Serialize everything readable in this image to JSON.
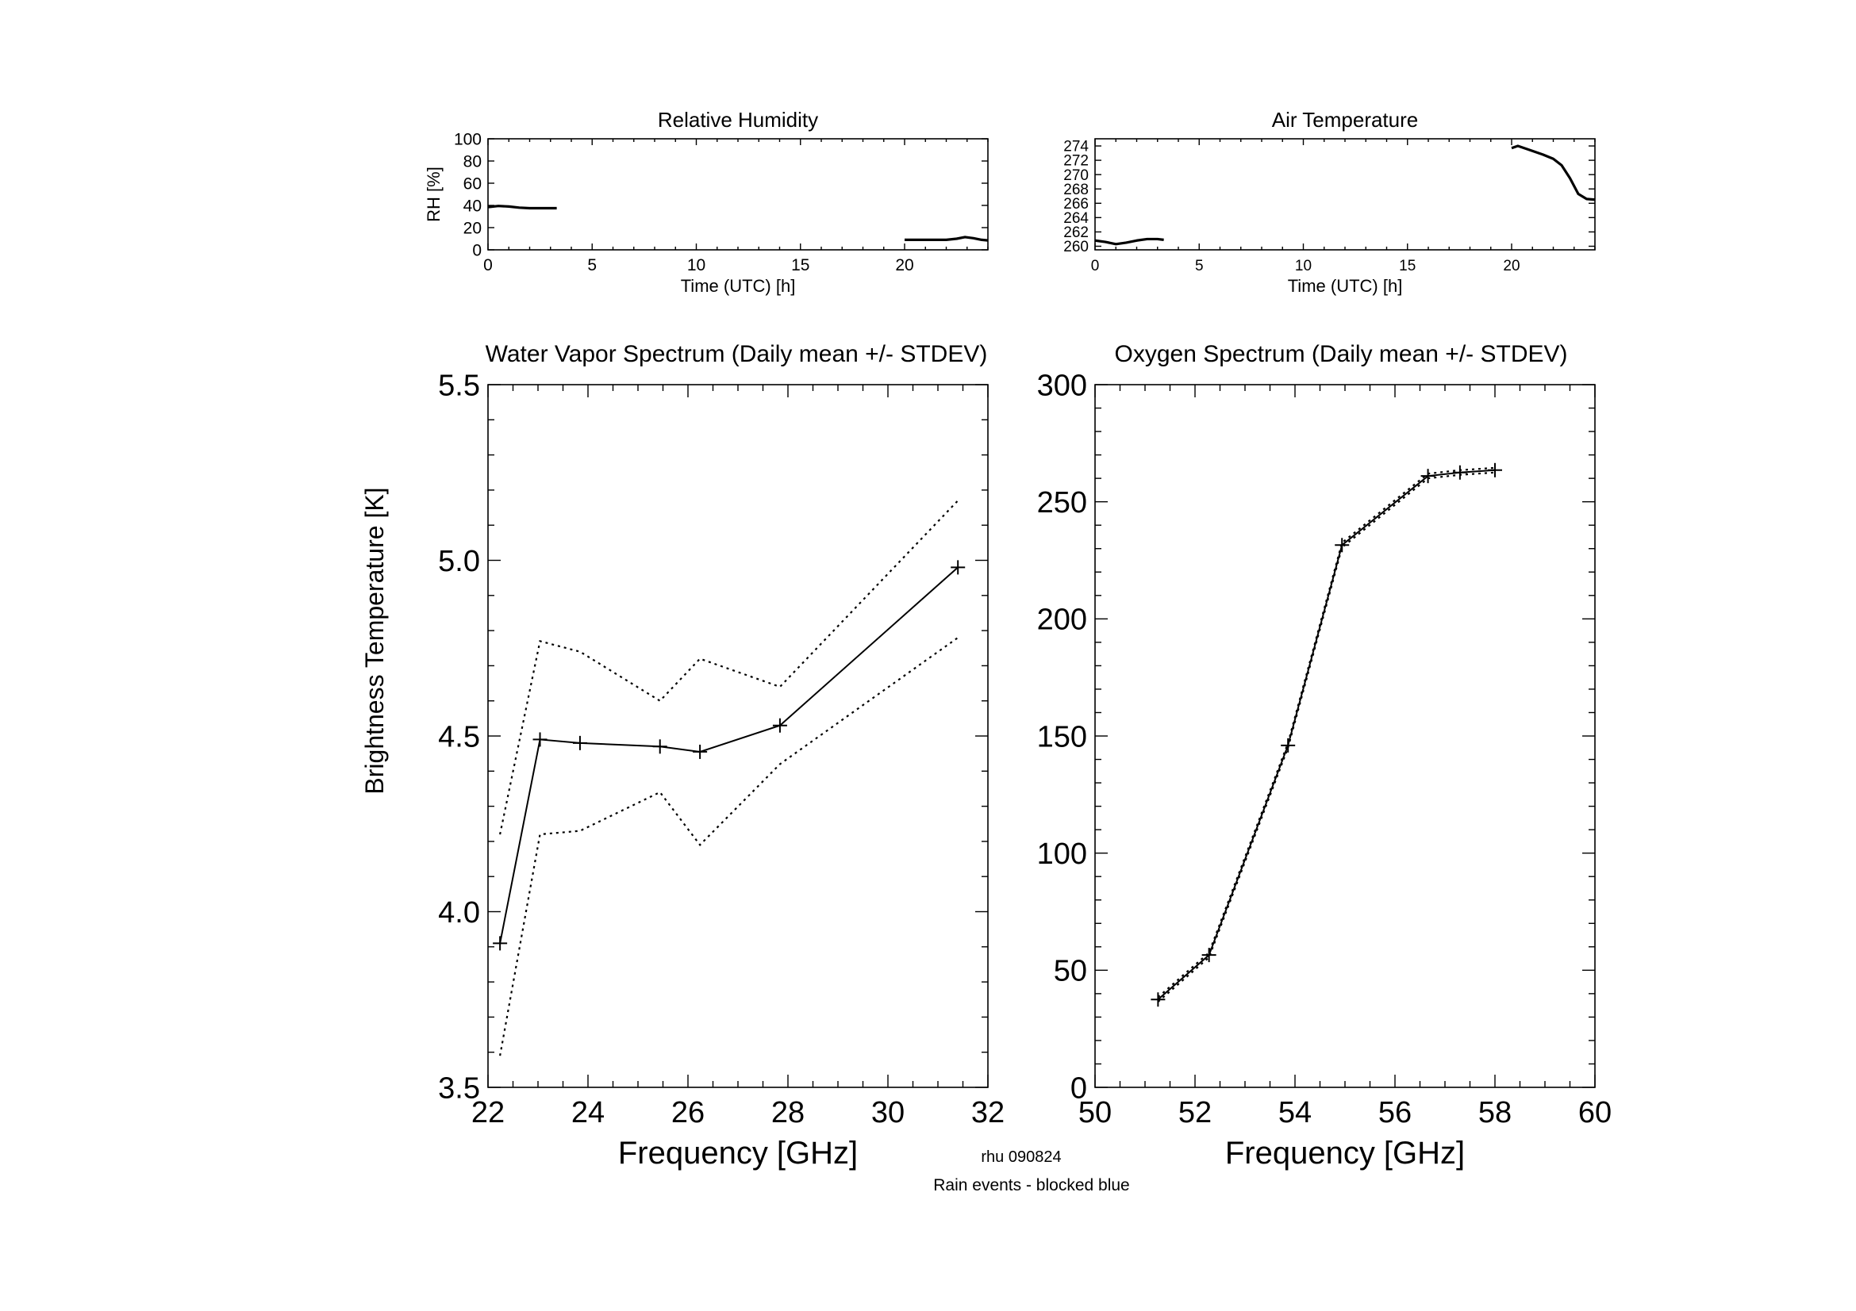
{
  "footer": {
    "station_label": "rhu 090824",
    "rain_note": "Rain events - blocked blue",
    "rain_note_color": "#00ffff"
  },
  "chart_data": [
    {
      "id": "rh",
      "type": "line",
      "title": "Relative Humidity",
      "xlabel": "Time (UTC) [h]",
      "ylabel": "RH [%]",
      "xlim": [
        0,
        24
      ],
      "ylim": [
        0,
        100
      ],
      "xticks": [
        0,
        5,
        10,
        15,
        20
      ],
      "yticks": [
        0,
        20,
        40,
        60,
        80,
        100
      ],
      "series": [
        {
          "segments": [
            [
              [
                0,
                38.5
              ],
              [
                0.5,
                39.5
              ],
              [
                1,
                39
              ],
              [
                1.5,
                38
              ],
              [
                2,
                37.5
              ],
              [
                2.5,
                37.5
              ],
              [
                3,
                37.5
              ],
              [
                3.3,
                37.5
              ]
            ],
            [
              [
                20,
                9
              ],
              [
                21,
                9
              ],
              [
                22,
                9
              ],
              [
                22.5,
                10
              ],
              [
                22.9,
                11.5
              ],
              [
                23.3,
                10.5
              ],
              [
                23.7,
                9
              ],
              [
                24,
                8.5
              ]
            ]
          ]
        }
      ]
    },
    {
      "id": "temp",
      "type": "line",
      "title": "Air Temperature",
      "xlabel": "Time (UTC) [h]",
      "ylabel": "",
      "xlim": [
        0,
        24
      ],
      "ylim": [
        259.5,
        275
      ],
      "xticks": [
        0,
        5,
        10,
        15,
        20
      ],
      "yticks": [
        260,
        262,
        264,
        266,
        268,
        270,
        272,
        274
      ],
      "series": [
        {
          "segments": [
            [
              [
                0,
                260.8
              ],
              [
                0.5,
                260.6
              ],
              [
                1,
                260.3
              ],
              [
                1.5,
                260.5
              ],
              [
                2,
                260.8
              ],
              [
                2.5,
                261
              ],
              [
                3,
                261
              ],
              [
                3.3,
                260.9
              ]
            ],
            [
              [
                20,
                273.7
              ],
              [
                20.3,
                274
              ],
              [
                20.8,
                273.5
              ],
              [
                21.5,
                272.8
              ],
              [
                22,
                272.2
              ],
              [
                22.4,
                271.3
              ],
              [
                22.8,
                269.5
              ],
              [
                23.2,
                267.3
              ],
              [
                23.6,
                266.6
              ],
              [
                24,
                266.5
              ]
            ]
          ]
        }
      ]
    },
    {
      "id": "wv",
      "type": "line",
      "title": "Water Vapor Spectrum (Daily mean +/- STDEV)",
      "xlabel": "Frequency [GHz]",
      "ylabel": "Brightness Temperature [K]",
      "xlim": [
        22,
        32
      ],
      "ylim": [
        3.5,
        5.5
      ],
      "xticks": [
        22,
        24,
        26,
        28,
        30,
        32
      ],
      "yticks": [
        3.5,
        4.0,
        4.5,
        5.0,
        5.5
      ],
      "x": [
        22.24,
        23.04,
        23.84,
        25.44,
        26.24,
        27.84,
        31.4
      ],
      "series": [
        {
          "name": "",
          "role": "mean",
          "values": [
            3.91,
            4.49,
            4.48,
            4.47,
            4.455,
            4.53,
            4.98
          ]
        },
        {
          "name": "",
          "role": "upper",
          "values": [
            4.22,
            4.77,
            4.74,
            4.6,
            4.72,
            4.64,
            5.17
          ]
        },
        {
          "name": "",
          "role": "lower",
          "values": [
            3.59,
            4.22,
            4.23,
            4.34,
            4.19,
            4.42,
            4.78
          ]
        }
      ]
    },
    {
      "id": "ox",
      "type": "line",
      "title": "Oxygen Spectrum (Daily mean +/- STDEV)",
      "xlabel": "Frequency [GHz]",
      "ylabel": "",
      "xlim": [
        50,
        60
      ],
      "ylim": [
        0,
        300
      ],
      "xticks": [
        50,
        52,
        54,
        56,
        58,
        60
      ],
      "yticks": [
        0,
        50,
        100,
        150,
        200,
        250,
        300
      ],
      "x": [
        51.26,
        52.28,
        53.86,
        54.94,
        56.66,
        57.3,
        58.0
      ],
      "series": [
        {
          "name": "",
          "role": "mean",
          "values": [
            37.5,
            56.5,
            146,
            231.5,
            261,
            262.5,
            263.5
          ]
        },
        {
          "name": "",
          "role": "upper",
          "values": [
            38.5,
            57.5,
            147,
            232.5,
            262,
            263.5,
            264.5
          ]
        },
        {
          "name": "",
          "role": "lower",
          "values": [
            36.5,
            55.5,
            145,
            230.5,
            260,
            261.5,
            262.5
          ]
        }
      ]
    }
  ]
}
